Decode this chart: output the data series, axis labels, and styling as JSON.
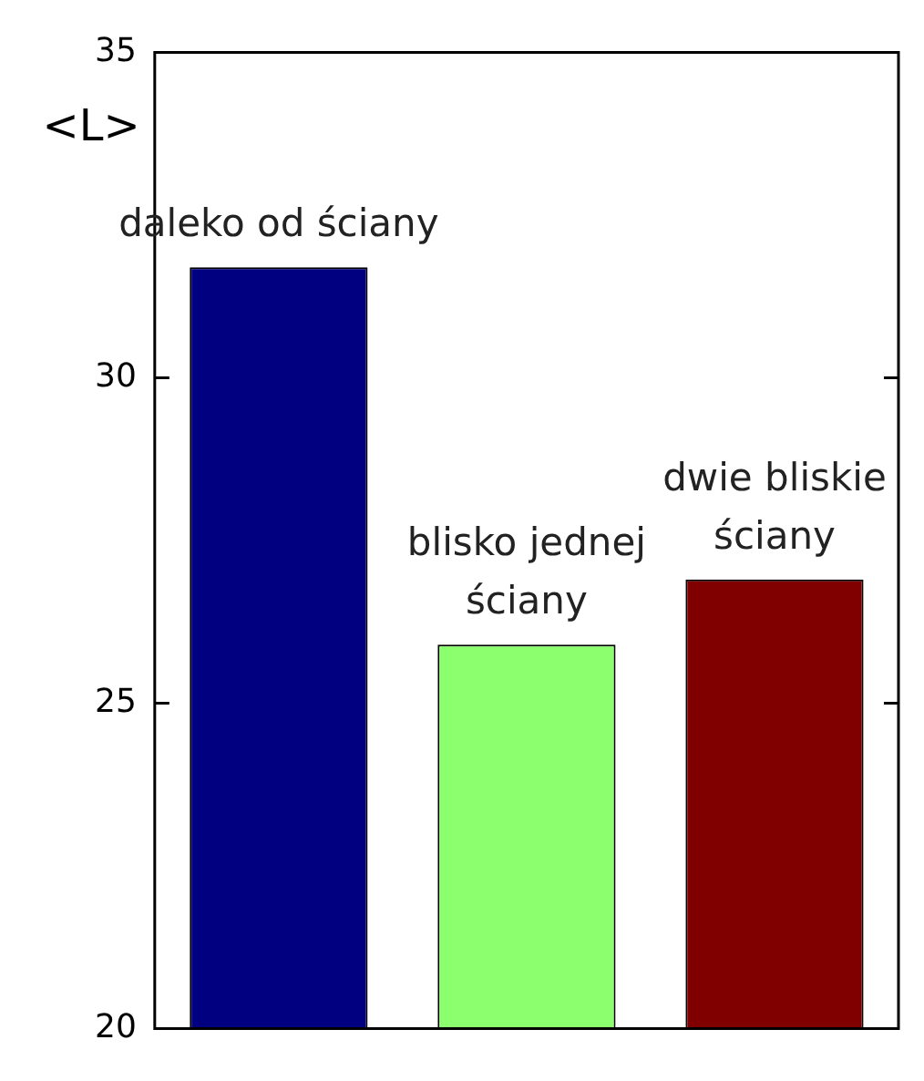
{
  "chart_data": {
    "type": "bar",
    "ylabel": "<L>",
    "categories": [
      "daleko od ściany",
      "blisko jednej ściany",
      "dwie bliskie ściany"
    ],
    "colors": [
      "#000080",
      "#8cff6e",
      "#800000"
    ],
    "values": [
      31.7,
      25.9,
      26.9
    ],
    "ylim": [
      20,
      35
    ],
    "yticks": [
      20,
      25,
      30,
      35
    ],
    "grid": false,
    "legend": false
  }
}
